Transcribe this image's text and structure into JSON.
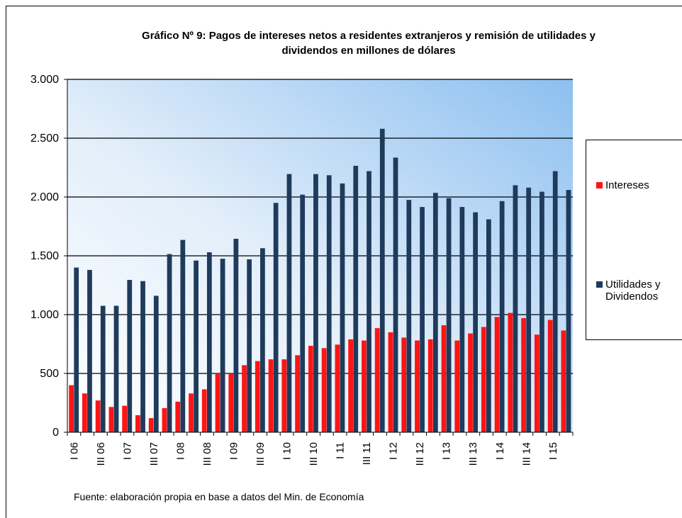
{
  "chart_data": {
    "type": "bar",
    "title": "Gráfico Nº 9:  Pagos de intereses netos a residentes extranjeros y remisión de utilidades y dividendos en millones de dólares",
    "source": "Fuente: elaboración propia en base a datos del Min. de Economía",
    "categories": [
      "I 06",
      null,
      "III 06",
      null,
      "I 07",
      null,
      "III 07",
      null,
      "I 08",
      null,
      "III 08",
      null,
      "I 09",
      null,
      "III 09",
      null,
      "I 10",
      null,
      "III 10",
      null,
      "I 11",
      null,
      "III 11",
      null,
      "I 12",
      null,
      "III 12",
      null,
      "I 13",
      null,
      "III 13",
      null,
      "I 14",
      null,
      "III 14",
      null,
      "I 15",
      null
    ],
    "series": [
      {
        "name": "Intereses",
        "color": "#ff1414",
        "values": [
          400,
          330,
          270,
          215,
          225,
          145,
          120,
          205,
          260,
          330,
          365,
          500,
          500,
          570,
          605,
          620,
          620,
          655,
          735,
          715,
          745,
          790,
          780,
          885,
          850,
          805,
          780,
          790,
          910,
          780,
          840,
          895,
          980,
          1015,
          970,
          830,
          955,
          865
        ]
      },
      {
        "name": "Utilidades y Dividendos",
        "color": "#1f3b5c",
        "values": [
          1400,
          1380,
          1075,
          1075,
          1295,
          1285,
          1160,
          1515,
          1635,
          1460,
          1530,
          1475,
          1645,
          1470,
          1565,
          1950,
          2195,
          2020,
          2195,
          2185,
          2115,
          2265,
          2220,
          2580,
          2335,
          1975,
          1915,
          2035,
          1990,
          1915,
          1870,
          1810,
          1965,
          2100,
          2080,
          2045,
          2220,
          2060
        ]
      }
    ],
    "ylim": [
      0,
      3000
    ],
    "yticks": [
      0,
      500,
      {
        "value": 1000,
        "label": "1.000"
      },
      {
        "value": 1500,
        "label": "1.500"
      },
      {
        "value": 2000,
        "label": "2.000"
      },
      {
        "value": 2500,
        "label": "2.500"
      },
      {
        "value": 3000,
        "label": "3.000"
      }
    ],
    "grid": true,
    "legend": "right"
  }
}
